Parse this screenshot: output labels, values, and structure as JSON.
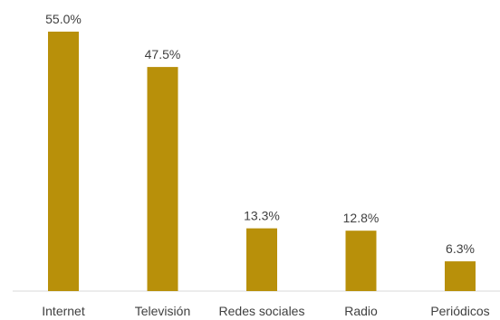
{
  "chart_data": {
    "type": "bar",
    "categories": [
      "Internet",
      "Televisión",
      "Redes sociales",
      "Radio",
      "Periódicos"
    ],
    "values": [
      55.0,
      47.5,
      13.3,
      12.8,
      6.3
    ],
    "value_labels": [
      "55.0%",
      "47.5%",
      "13.3%",
      "12.8%",
      "6.3%"
    ],
    "bar_color": "#B8900A",
    "axis_color": "#D9D9D9",
    "text_color": "#404040",
    "ylim": [
      0,
      55.0
    ],
    "grid": false,
    "legend": "none"
  }
}
